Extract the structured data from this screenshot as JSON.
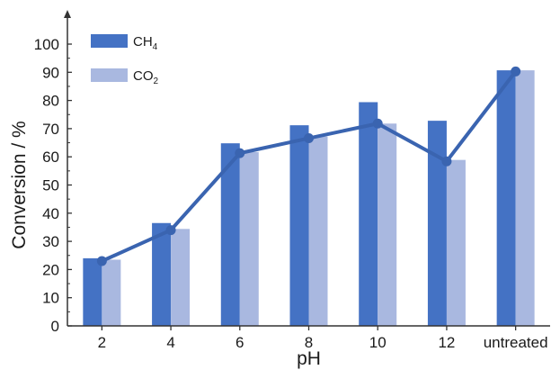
{
  "chart_data": {
    "type": "bar",
    "title": "",
    "xlabel": "pH",
    "ylabel": "Conversion / %",
    "ylim": [
      0,
      100
    ],
    "yticks": [
      0,
      10,
      20,
      30,
      40,
      50,
      60,
      70,
      80,
      90,
      100
    ],
    "categories": [
      "2",
      "4",
      "6",
      "8",
      "10",
      "12",
      "untreated"
    ],
    "series": [
      {
        "name": "CH4",
        "label_main": "CH",
        "label_sub": "4",
        "type": "bar",
        "color": "#4472c4",
        "values": [
          24,
          36.5,
          64.8,
          71.2,
          79.4,
          72.8,
          90.7
        ]
      },
      {
        "name": "CO2",
        "label_main": "CO",
        "label_sub": "2",
        "type": "bar",
        "color": "#a9b8e0",
        "values": [
          23.5,
          34.4,
          61.7,
          67.2,
          71.8,
          58.9,
          90.7
        ]
      },
      {
        "type": "line",
        "color": "#3a64b0",
        "values": [
          23,
          34,
          61.3,
          66.6,
          71.8,
          58.4,
          90.3
        ]
      }
    ],
    "legend_position": "top-left",
    "grid": false
  }
}
